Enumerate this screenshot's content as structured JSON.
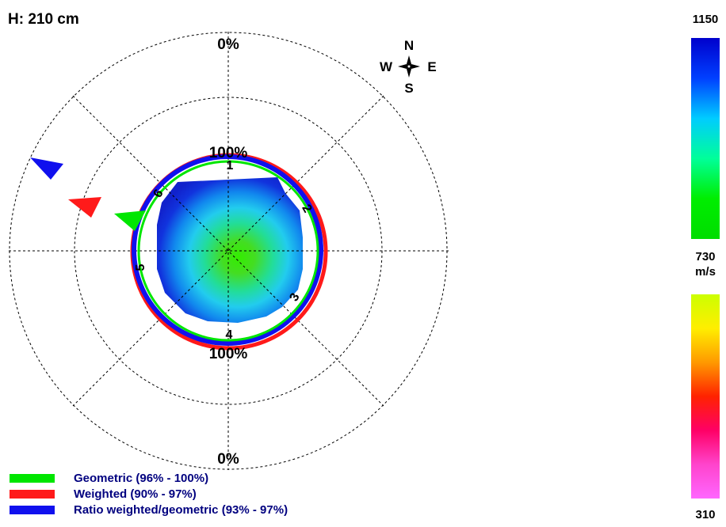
{
  "header": {
    "title": "H: 210 cm"
  },
  "rings": {
    "top_outer": "0%",
    "top_inner": "100%",
    "bottom_inner": "100%",
    "bottom_outer": "0%"
  },
  "sensors": [
    "1",
    "2",
    "3",
    "4",
    "5",
    "6"
  ],
  "compass": {
    "north": "N",
    "south": "S",
    "east": "E",
    "west": "W"
  },
  "legend": [
    {
      "label": "Geometric (96% - 100%)",
      "color": "#00e600"
    },
    {
      "label": "Weighted (90% - 97%)",
      "color": "#ff1a1a"
    },
    {
      "label": "Ratio weighted/geometric (93% - 97%)",
      "color": "#1010ee"
    }
  ],
  "scale": {
    "max": "1150",
    "mid": "730",
    "unit": "m/s",
    "min": "310",
    "upper_gradient": [
      "#0000cc",
      "#0040ff",
      "#00ccff",
      "#00ff99",
      "#00ee00",
      "#00dd00"
    ],
    "lower_gradient": [
      "#ccff00",
      "#ffee00",
      "#ff9900",
      "#ff2200",
      "#ff0066",
      "#ff44cc",
      "#ff66ff"
    ]
  }
}
